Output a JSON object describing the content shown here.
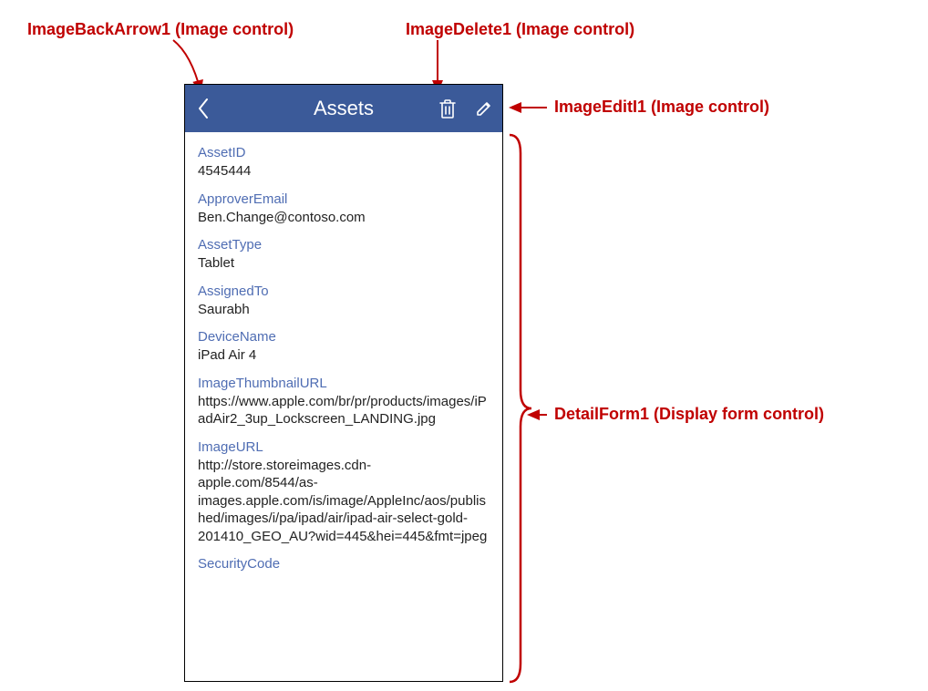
{
  "annotations": {
    "backArrow": "ImageBackArrow1 (Image control)",
    "delete": "ImageDelete1 (Image control)",
    "edit": "ImageEditI1 (Image control)",
    "detailForm": "DetailForm1 (Display form control)"
  },
  "colors": {
    "annotation": "#c00000",
    "headerBg": "#3b5a99",
    "headerFg": "#ffffff",
    "labelColor": "#4f6db3",
    "valueColor": "#222222",
    "borderColor": "#000000"
  },
  "header": {
    "title": "Assets"
  },
  "fields": [
    {
      "label": "AssetID",
      "value": "4545444"
    },
    {
      "label": "ApproverEmail",
      "value": "Ben.Change@contoso.com"
    },
    {
      "label": "AssetType",
      "value": "Tablet"
    },
    {
      "label": "AssignedTo",
      "value": "Saurabh"
    },
    {
      "label": "DeviceName",
      "value": "iPad Air 4"
    },
    {
      "label": "ImageThumbnailURL",
      "value": "https://www.apple.com/br/pr/products/images/iPadAir2_3up_Lockscreen_LANDING.jpg"
    },
    {
      "label": "ImageURL",
      "value": "http://store.storeimages.cdn-apple.com/8544/as-images.apple.com/is/image/AppleInc/aos/published/images/i/pa/ipad/air/ipad-air-select-gold-201410_GEO_AU?wid=445&hei=445&fmt=jpeg"
    },
    {
      "label": "SecurityCode",
      "value": ""
    }
  ]
}
